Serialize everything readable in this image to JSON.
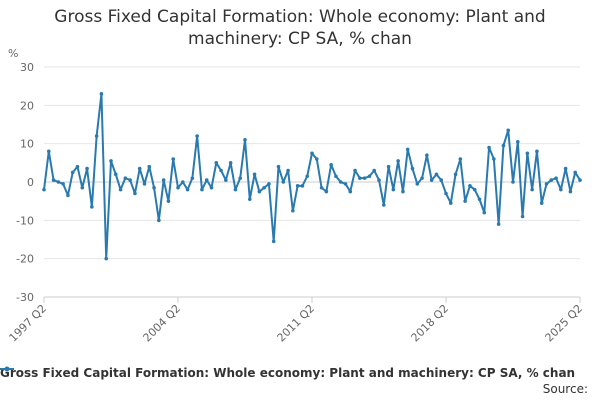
{
  "title_line1": "Gross Fixed Capital Formation: Whole economy: Plant and",
  "title_line2": "machinery: CP SA, % chan",
  "source": "Source:",
  "chart_data": {
    "type": "line",
    "title": "Gross Fixed Capital Formation: Whole economy: Plant and machinery: CP SA, % chan",
    "ylabel": "%",
    "xlabel": "",
    "ylim": [
      -30,
      30
    ],
    "yticks": [
      -30,
      -20,
      -10,
      0,
      10,
      20,
      30
    ],
    "xticks": [
      "1997 Q2",
      "2004 Q2",
      "2011 Q2",
      "2018 Q2",
      "2025 Q2"
    ],
    "grid": true,
    "legend": "bottom",
    "color": "#2a7ab0",
    "series": [
      {
        "name": "Gross Fixed Capital Formation: Whole economy: Plant and machinery: CP SA, % chan",
        "start": "1997 Q2",
        "values": [
          -2.0,
          8.0,
          0.5,
          0.0,
          -0.5,
          -3.5,
          2.5,
          4.0,
          -1.5,
          3.5,
          -6.5,
          12.0,
          23.0,
          -20.0,
          5.5,
          2.0,
          -2.0,
          1.0,
          0.5,
          -3.0,
          3.5,
          -0.5,
          4.0,
          -1.5,
          -10.0,
          0.5,
          -5.0,
          6.0,
          -1.5,
          0.0,
          -2.0,
          1.0,
          12.0,
          -2.0,
          0.5,
          -1.5,
          5.0,
          3.0,
          0.5,
          5.0,
          -2.0,
          1.0,
          11.0,
          -4.5,
          2.0,
          -2.5,
          -1.5,
          -0.5,
          -15.5,
          4.0,
          0.0,
          3.0,
          -7.5,
          -1.0,
          -1.0,
          1.5,
          7.5,
          6.0,
          -1.5,
          -2.5,
          4.5,
          1.5,
          0.0,
          -0.5,
          -2.5,
          3.0,
          1.0,
          1.0,
          1.5,
          3.0,
          0.5,
          -6.0,
          4.0,
          -2.0,
          5.5,
          -2.5,
          8.5,
          3.5,
          -0.5,
          1.0,
          7.0,
          0.5,
          2.0,
          0.5,
          -3.0,
          -5.5,
          2.0,
          6.0,
          -5.0,
          -1.0,
          -2.0,
          -4.5,
          -8.0,
          9.0,
          6.0,
          -11.0,
          9.5,
          13.5,
          0.0,
          10.5,
          -9.0,
          7.5,
          -2.0,
          8.0,
          -5.5,
          -0.5,
          0.5,
          1.0,
          -2.0,
          3.5,
          -2.5,
          2.5,
          0.5
        ]
      }
    ]
  }
}
